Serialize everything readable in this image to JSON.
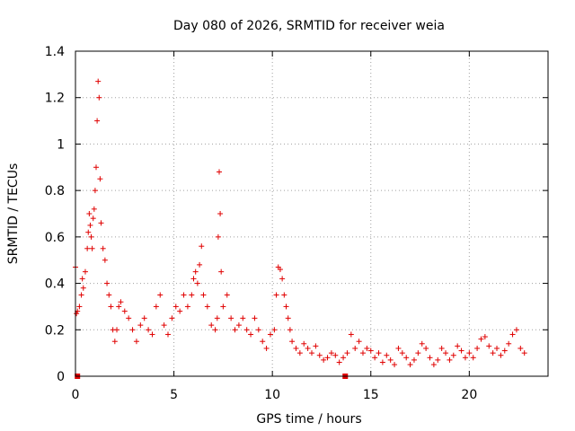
{
  "chart_data": {
    "type": "scatter",
    "title": "Day 080 of 2026, SRMTID for receiver weia",
    "xlabel": "GPS time / hours",
    "ylabel": "SRMTID / TECUs",
    "xlim": [
      0,
      24
    ],
    "ylim": [
      0,
      1.4
    ],
    "xticks": [
      "0",
      "5",
      "10",
      "15",
      "20"
    ],
    "yticks": [
      "0",
      "0.2",
      "0.4",
      "0.6",
      "0.8",
      "1",
      "1.2",
      "1.4"
    ],
    "grid": true,
    "marker": "+",
    "color": "#e00000",
    "series": [
      {
        "name": "SRMTID",
        "x": [
          0.0,
          0.05,
          0.1,
          0.2,
          0.3,
          0.35,
          0.4,
          0.5,
          0.6,
          0.65,
          0.7,
          0.75,
          0.8,
          0.85,
          0.9,
          0.95,
          1.0,
          1.05,
          1.1,
          1.15,
          1.2,
          1.25,
          1.3,
          1.4,
          1.5,
          1.6,
          1.7,
          1.8,
          1.9,
          2.0,
          2.1,
          2.2,
          2.3,
          2.5,
          2.7,
          2.9,
          3.1,
          3.3,
          3.5,
          3.7,
          3.9,
          4.1,
          4.3,
          4.5,
          4.7,
          4.9,
          5.1,
          5.3,
          5.5,
          5.7,
          5.9,
          6.0,
          6.1,
          6.2,
          6.3,
          6.4,
          6.5,
          6.7,
          6.9,
          7.1,
          7.2,
          7.25,
          7.3,
          7.35,
          7.4,
          7.5,
          7.7,
          7.9,
          8.1,
          8.3,
          8.5,
          8.7,
          8.9,
          9.1,
          9.3,
          9.5,
          9.7,
          9.9,
          10.1,
          10.2,
          10.3,
          10.4,
          10.5,
          10.6,
          10.7,
          10.8,
          10.9,
          11.0,
          11.2,
          11.4,
          11.6,
          11.8,
          12.0,
          12.2,
          12.4,
          12.6,
          12.8,
          13.0,
          13.2,
          13.4,
          13.6,
          13.8,
          14.0,
          14.2,
          14.4,
          14.6,
          14.8,
          15.0,
          15.2,
          15.4,
          15.6,
          15.8,
          16.0,
          16.2,
          16.4,
          16.6,
          16.8,
          17.0,
          17.2,
          17.4,
          17.6,
          17.8,
          18.0,
          18.2,
          18.4,
          18.6,
          18.8,
          19.0,
          19.2,
          19.4,
          19.6,
          19.8,
          20.0,
          20.2,
          20.4,
          20.6,
          20.8,
          21.0,
          21.2,
          21.4,
          21.6,
          21.8,
          22.0,
          22.2,
          22.4,
          22.6,
          22.8
        ],
        "values": [
          0.47,
          0.27,
          0.28,
          0.3,
          0.35,
          0.42,
          0.38,
          0.45,
          0.55,
          0.62,
          0.7,
          0.65,
          0.6,
          0.55,
          0.68,
          0.72,
          0.8,
          0.9,
          1.1,
          1.27,
          1.2,
          0.85,
          0.66,
          0.55,
          0.5,
          0.4,
          0.35,
          0.3,
          0.2,
          0.15,
          0.2,
          0.3,
          0.32,
          0.28,
          0.25,
          0.2,
          0.15,
          0.22,
          0.25,
          0.2,
          0.18,
          0.3,
          0.35,
          0.22,
          0.18,
          0.25,
          0.3,
          0.28,
          0.35,
          0.3,
          0.35,
          0.42,
          0.45,
          0.4,
          0.48,
          0.56,
          0.35,
          0.3,
          0.22,
          0.2,
          0.25,
          0.6,
          0.88,
          0.7,
          0.45,
          0.3,
          0.35,
          0.25,
          0.2,
          0.22,
          0.25,
          0.2,
          0.18,
          0.25,
          0.2,
          0.15,
          0.12,
          0.18,
          0.2,
          0.35,
          0.47,
          0.46,
          0.42,
          0.35,
          0.3,
          0.25,
          0.2,
          0.15,
          0.12,
          0.1,
          0.14,
          0.12,
          0.1,
          0.13,
          0.09,
          0.07,
          0.08,
          0.1,
          0.09,
          0.06,
          0.08,
          0.1,
          0.18,
          0.12,
          0.15,
          0.1,
          0.12,
          0.11,
          0.08,
          0.1,
          0.06,
          0.09,
          0.07,
          0.05,
          0.12,
          0.1,
          0.08,
          0.05,
          0.07,
          0.1,
          0.14,
          0.12,
          0.08,
          0.05,
          0.07,
          0.12,
          0.1,
          0.07,
          0.09,
          0.13,
          0.11,
          0.08,
          0.1,
          0.08,
          0.12,
          0.16,
          0.17,
          0.13,
          0.1,
          0.12,
          0.09,
          0.11,
          0.14,
          0.18,
          0.2,
          0.12,
          0.1
        ],
        "zero_markers_x": [
          0.1,
          13.7
        ]
      }
    ]
  }
}
